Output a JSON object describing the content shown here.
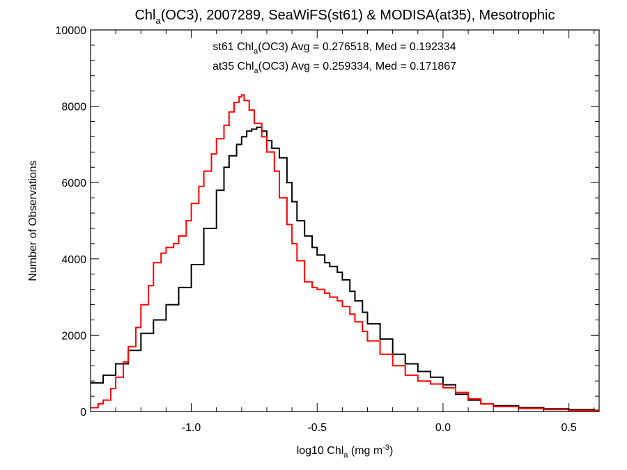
{
  "chart_data": {
    "type": "line",
    "step": true,
    "title": {
      "pre": "Chl",
      "sub": "a",
      "post": "(OC3), 2007289, SeaWiFS(st61) & MODISA(at35), Mesotrophic"
    },
    "xlabel": {
      "pre": "log10 Chl",
      "sub": "a",
      "mid": " (mg m",
      "sup": "-3",
      "post": ")"
    },
    "ylabel": "Number of Observations",
    "xlim": [
      -1.4,
      0.62
    ],
    "ylim": [
      0,
      10000
    ],
    "xticks": [
      -1.0,
      -0.5,
      0.0,
      0.5
    ],
    "xtick_labels": [
      "-1.0",
      "-0.5",
      "0.0",
      "0.5"
    ],
    "yticks": [
      0,
      2000,
      4000,
      6000,
      8000,
      10000
    ],
    "ytick_labels": [
      "0",
      "2000",
      "4000",
      "6000",
      "8000",
      "10000"
    ],
    "grid": false,
    "legend_position": "top-center",
    "series": [
      {
        "name": "st61",
        "color": "#000000",
        "label": {
          "pre": "st61 Chl",
          "sub": "a",
          "post": "(OC3) Avg = 0.276518, Med = 0.192334"
        },
        "x": [
          -1.4,
          -1.35,
          -1.3,
          -1.25,
          -1.2,
          -1.15,
          -1.1,
          -1.05,
          -1.0,
          -0.95,
          -0.9,
          -0.87,
          -0.85,
          -0.82,
          -0.8,
          -0.78,
          -0.76,
          -0.74,
          -0.72,
          -0.7,
          -0.68,
          -0.65,
          -0.62,
          -0.6,
          -0.58,
          -0.55,
          -0.52,
          -0.5,
          -0.47,
          -0.45,
          -0.42,
          -0.4,
          -0.37,
          -0.35,
          -0.32,
          -0.3,
          -0.25,
          -0.2,
          -0.15,
          -0.1,
          -0.05,
          0.0,
          0.05,
          0.1,
          0.15,
          0.2,
          0.3,
          0.4,
          0.5,
          0.6
        ],
        "y": [
          750,
          950,
          1250,
          1600,
          2050,
          2400,
          2800,
          3250,
          3850,
          4800,
          5800,
          6400,
          6700,
          7000,
          7200,
          7350,
          7400,
          7450,
          7350,
          7100,
          6900,
          6650,
          6000,
          5500,
          5000,
          4600,
          4300,
          4100,
          3900,
          3800,
          3650,
          3450,
          3150,
          2900,
          2600,
          2300,
          1900,
          1500,
          1250,
          1050,
          900,
          700,
          450,
          300,
          200,
          150,
          100,
          70,
          50,
          30
        ]
      },
      {
        "name": "at35",
        "color": "#ff0000",
        "label": {
          "pre": "at35 Chl",
          "sub": "a",
          "post": "(OC3) Avg = 0.259334, Med = 0.171867"
        },
        "x": [
          -1.4,
          -1.37,
          -1.35,
          -1.32,
          -1.3,
          -1.27,
          -1.25,
          -1.22,
          -1.2,
          -1.17,
          -1.15,
          -1.12,
          -1.1,
          -1.07,
          -1.05,
          -1.02,
          -1.0,
          -0.97,
          -0.95,
          -0.92,
          -0.9,
          -0.87,
          -0.85,
          -0.83,
          -0.81,
          -0.8,
          -0.79,
          -0.77,
          -0.75,
          -0.72,
          -0.7,
          -0.67,
          -0.65,
          -0.62,
          -0.6,
          -0.58,
          -0.55,
          -0.52,
          -0.5,
          -0.47,
          -0.45,
          -0.42,
          -0.4,
          -0.37,
          -0.35,
          -0.32,
          -0.3,
          -0.25,
          -0.2,
          -0.15,
          -0.1,
          -0.05,
          0.0,
          0.05,
          0.1,
          0.15,
          0.2,
          0.3,
          0.4,
          0.5,
          0.6
        ],
        "y": [
          100,
          200,
          300,
          600,
          900,
          1300,
          1700,
          2200,
          2800,
          3300,
          3900,
          4150,
          4300,
          4400,
          4600,
          5000,
          5450,
          5900,
          6300,
          6750,
          7150,
          7500,
          7850,
          8100,
          8250,
          8300,
          8150,
          7900,
          7550,
          7200,
          6800,
          6300,
          5600,
          4900,
          4400,
          3950,
          3400,
          3250,
          3200,
          3100,
          3000,
          2900,
          2750,
          2550,
          2350,
          2100,
          1850,
          1500,
          1200,
          950,
          800,
          720,
          620,
          500,
          330,
          200,
          130,
          80,
          50,
          30,
          20
        ]
      }
    ]
  }
}
